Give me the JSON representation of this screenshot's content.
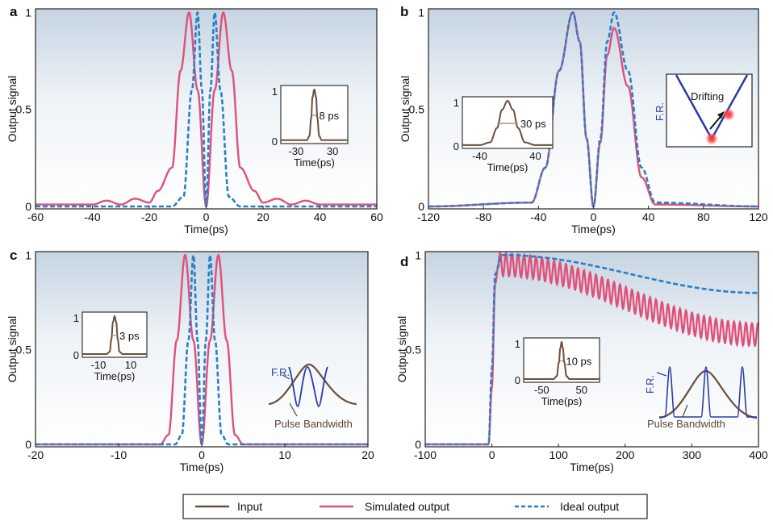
{
  "colors": {
    "input": "#6b4f3a",
    "simulated": "#e0507a",
    "ideal": "#2a7fc4",
    "fr": "#2a3aa8",
    "bg_top": "#c9d6e3",
    "bg_bottom": "#ffffff"
  },
  "legend": {
    "input_label": "Input",
    "simulated_label": "Simulated output",
    "ideal_label": "Ideal output"
  },
  "chart_data": [
    {
      "panel": "a",
      "type": "line",
      "xlabel": "Time(ps)",
      "ylabel": "Output signal",
      "xlim": [
        -60,
        60
      ],
      "ylim": [
        0,
        1
      ],
      "xticks": [
        "-60",
        "-40",
        "-20",
        "0",
        "20",
        "40",
        "60"
      ],
      "yticks": [
        "0",
        "0.5",
        "1"
      ],
      "series": [
        {
          "name": "Simulated output",
          "x": [
            -60,
            -40,
            -35,
            -30,
            -25,
            -20,
            -17,
            -12,
            -9,
            -6,
            -3,
            0,
            3,
            6,
            9,
            12,
            17,
            20,
            25,
            30,
            35,
            40,
            60
          ],
          "values": [
            0.01,
            0.01,
            0.03,
            0.01,
            0.04,
            0.02,
            0.08,
            0.2,
            0.7,
            1.0,
            0.6,
            0.0,
            0.6,
            1.0,
            0.7,
            0.2,
            0.08,
            0.02,
            0.04,
            0.01,
            0.03,
            0.01,
            0.01
          ]
        },
        {
          "name": "Ideal output",
          "x": [
            -60,
            -12,
            -8,
            -5,
            -3,
            -1.5,
            0,
            1.5,
            3,
            5,
            8,
            12,
            60
          ],
          "values": [
            0.0,
            0.0,
            0.05,
            0.6,
            1.0,
            0.6,
            0.0,
            0.6,
            1.0,
            0.6,
            0.05,
            0.0,
            0.0
          ]
        }
      ],
      "inset": {
        "type": "line",
        "xlabel": "Time(ps)",
        "xticks": [
          "-30",
          "30"
        ],
        "yticks": [
          "0",
          "1"
        ],
        "annotation": "8 ps",
        "series": [
          {
            "name": "Input",
            "x": [
              -50,
              -12,
              -8,
              -5,
              -3,
              0,
              3,
              5,
              8,
              12,
              50
            ],
            "values": [
              0.02,
              0.02,
              0.1,
              0.45,
              0.85,
              1.0,
              0.85,
              0.45,
              0.1,
              0.02,
              0.02
            ]
          }
        ]
      }
    },
    {
      "panel": "b",
      "type": "line",
      "xlabel": "Time(ps)",
      "ylabel": "Output signal",
      "xlim": [
        -120,
        120
      ],
      "ylim": [
        0,
        1
      ],
      "xticks": [
        "-120",
        "-80",
        "-40",
        "0",
        "40",
        "80",
        "120"
      ],
      "yticks": [
        "0",
        "0.5",
        "1"
      ],
      "series": [
        {
          "name": "Simulated output",
          "x": [
            -120,
            -45,
            -35,
            -25,
            -15,
            -10,
            -5,
            0,
            5,
            10,
            15,
            25,
            35,
            45,
            120
          ],
          "values": [
            0.0,
            0.02,
            0.2,
            0.7,
            1.0,
            0.85,
            0.35,
            0.0,
            0.33,
            0.78,
            0.92,
            0.62,
            0.15,
            0.01,
            0.0
          ]
        },
        {
          "name": "Ideal output",
          "x": [
            -120,
            -45,
            -35,
            -25,
            -15,
            -10,
            -5,
            0,
            5,
            10,
            15,
            25,
            35,
            45,
            120
          ],
          "values": [
            0.0,
            0.02,
            0.2,
            0.7,
            1.0,
            0.85,
            0.35,
            0.0,
            0.35,
            0.85,
            1.0,
            0.7,
            0.2,
            0.02,
            0.0
          ]
        }
      ],
      "inset": {
        "type": "line",
        "xlabel": "Time(ps)",
        "xticks": [
          "-40",
          "40"
        ],
        "yticks": [
          "0",
          "1"
        ],
        "annotation": "30 ps",
        "series": [
          {
            "name": "Input",
            "x": [
              -60,
              -40,
              -25,
              -15,
              -8,
              0,
              8,
              15,
              25,
              40,
              60
            ],
            "values": [
              0.02,
              0.02,
              0.08,
              0.4,
              0.8,
              1.0,
              0.8,
              0.4,
              0.08,
              0.02,
              0.02
            ]
          }
        ]
      },
      "schematic": {
        "label": "F.R.",
        "annotation": "Drifting"
      }
    },
    {
      "panel": "c",
      "type": "line",
      "xlabel": "Time(ps)",
      "ylabel": "Output signal",
      "xlim": [
        -20,
        20
      ],
      "ylim": [
        0,
        1
      ],
      "xticks": [
        "-20",
        "-10",
        "0",
        "10",
        "20"
      ],
      "yticks": [
        "0",
        "0.5",
        "1"
      ],
      "series": [
        {
          "name": "Simulated output",
          "x": [
            -20,
            -5,
            -4,
            -3,
            -2,
            -1,
            0,
            1,
            2,
            3,
            4,
            5,
            20
          ],
          "values": [
            0.0,
            0.0,
            0.05,
            0.55,
            1.0,
            0.55,
            0.0,
            0.55,
            1.0,
            0.55,
            0.05,
            0.0,
            0.0
          ]
        },
        {
          "name": "Ideal output",
          "x": [
            -20,
            -3.2,
            -2.4,
            -1.6,
            -1,
            -0.5,
            0,
            0.5,
            1,
            1.6,
            2.4,
            3.2,
            20
          ],
          "values": [
            0.0,
            0.0,
            0.05,
            0.55,
            1.0,
            0.55,
            0.0,
            0.55,
            1.0,
            0.55,
            0.05,
            0.0,
            0.0
          ]
        }
      ],
      "inset": {
        "type": "line",
        "xlabel": "Time(ps)",
        "xticks": [
          "-10",
          "10"
        ],
        "yticks": [
          "0",
          "1"
        ],
        "annotation": "3 ps",
        "series": [
          {
            "name": "Input",
            "x": [
              -20,
              -5,
              -3,
              -2,
              -1,
              0,
              1,
              2,
              3,
              5,
              20
            ],
            "values": [
              0.02,
              0.02,
              0.08,
              0.4,
              0.85,
              1.0,
              0.85,
              0.4,
              0.08,
              0.02,
              0.02
            ]
          }
        ]
      },
      "schematic": {
        "label": "F.R.",
        "annotation": "Pulse Bandwidth"
      }
    },
    {
      "panel": "d",
      "type": "line",
      "xlabel": "Time(ps)",
      "ylabel": "Output signal",
      "xlim": [
        -100,
        400
      ],
      "ylim": [
        0,
        1
      ],
      "xticks": [
        "-100",
        "0",
        "100",
        "200",
        "300",
        "400"
      ],
      "yticks": [
        "0",
        "0.5",
        "1"
      ],
      "series": [
        {
          "name": "Simulated output",
          "x": [
            -100,
            -5,
            0,
            5,
            10,
            400
          ],
          "values": [
            0.0,
            0.0,
            0.3,
            0.85,
            0.95,
            0.58
          ],
          "oscillation_amplitude": 0.06,
          "oscillation_period": 9
        },
        {
          "name": "Ideal output",
          "x": [
            -100,
            -5,
            0,
            5,
            15,
            400
          ],
          "values": [
            0.0,
            0.0,
            0.4,
            0.9,
            1.0,
            0.8
          ]
        }
      ],
      "inset": {
        "type": "line",
        "xlabel": "Time(ps)",
        "xticks": [
          "-50",
          "50"
        ],
        "yticks": [
          "0",
          "1"
        ],
        "annotation": "10 ps",
        "series": [
          {
            "name": "Input",
            "x": [
              -90,
              -20,
              -12,
              -7,
              -3,
              0,
              3,
              7,
              12,
              20,
              90
            ],
            "values": [
              0.02,
              0.02,
              0.1,
              0.45,
              0.85,
              1.0,
              0.85,
              0.45,
              0.1,
              0.02,
              0.02
            ]
          }
        ]
      },
      "schematic": {
        "label": "F.R.",
        "annotation": "Pulse Bandwidth"
      }
    }
  ]
}
